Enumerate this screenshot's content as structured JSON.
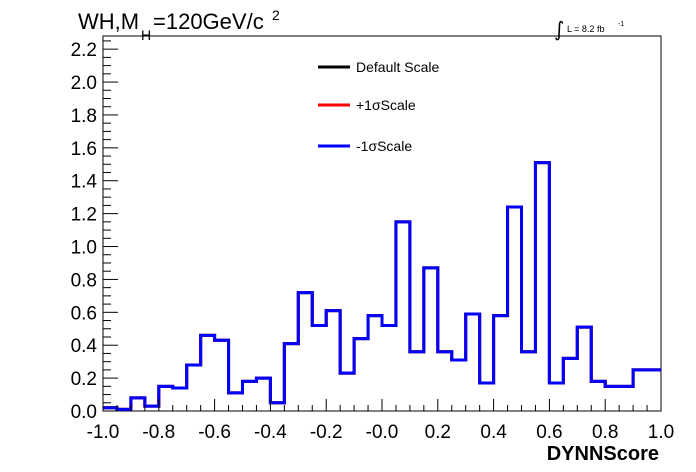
{
  "chart_data": {
    "type": "line",
    "title": {
      "main": "WH,M",
      "subscript": "H",
      "rest": "=120GeV/c",
      "superscript": "2"
    },
    "luminosity": {
      "symbol": "∫",
      "text": "L = 8.2 fb",
      "superscript": "-1"
    },
    "xlabel": "DYNNScore",
    "ylabel": "",
    "xlim": [
      -1.0,
      1.0
    ],
    "ylim": [
      0.0,
      2.28
    ],
    "x_ticks": [
      "-1.0",
      "-0.8",
      "-0.6",
      "-0.4",
      "-0.2",
      "-0.0",
      "0.2",
      "0.4",
      "0.6",
      "0.8",
      "1.0"
    ],
    "y_ticks": [
      "0.0",
      "0.2",
      "0.4",
      "0.6",
      "0.8",
      "1.0",
      "1.2",
      "1.4",
      "1.6",
      "1.8",
      "2.0",
      "2.2"
    ],
    "bin_edges": [
      -1.0,
      -0.95,
      -0.9,
      -0.85,
      -0.8,
      -0.75,
      -0.7,
      -0.65,
      -0.6,
      -0.55,
      -0.5,
      -0.45,
      -0.4,
      -0.35,
      -0.3,
      -0.25,
      -0.2,
      -0.15,
      -0.1,
      -0.05,
      0.0,
      0.05,
      0.1,
      0.15,
      0.2,
      0.25,
      0.3,
      0.35,
      0.4,
      0.45,
      0.5,
      0.55,
      0.6,
      0.65,
      0.7,
      0.75,
      0.8,
      0.85,
      0.9,
      0.95,
      1.0
    ],
    "series": [
      {
        "name": "Default Scale",
        "color": "#000000",
        "values": [
          0.02,
          0.01,
          0.08,
          0.03,
          0.15,
          0.14,
          0.28,
          0.46,
          0.43,
          0.11,
          0.18,
          0.2,
          0.05,
          0.41,
          0.72,
          0.52,
          0.61,
          0.23,
          0.44,
          0.58,
          0.52,
          1.15,
          0.36,
          0.87,
          0.36,
          0.31,
          0.59,
          0.17,
          0.58,
          1.24,
          0.36,
          1.51,
          0.17,
          0.32,
          0.51,
          0.18,
          0.15,
          0.15,
          0.25,
          0.25
        ]
      },
      {
        "name": "+1σScale",
        "color": "#ff0000",
        "values": [
          0.02,
          0.01,
          0.08,
          0.03,
          0.15,
          0.14,
          0.28,
          0.46,
          0.43,
          0.11,
          0.18,
          0.2,
          0.05,
          0.41,
          0.72,
          0.52,
          0.61,
          0.23,
          0.44,
          0.58,
          0.52,
          1.15,
          0.36,
          0.87,
          0.36,
          0.31,
          0.59,
          0.17,
          0.58,
          1.24,
          0.36,
          1.51,
          0.17,
          0.32,
          0.51,
          0.18,
          0.15,
          0.15,
          0.25,
          0.25
        ]
      },
      {
        "name": "-1σScale",
        "color": "#0000ff",
        "values": [
          0.02,
          0.01,
          0.08,
          0.03,
          0.15,
          0.14,
          0.28,
          0.46,
          0.43,
          0.11,
          0.18,
          0.2,
          0.05,
          0.41,
          0.72,
          0.52,
          0.61,
          0.23,
          0.44,
          0.58,
          0.52,
          1.15,
          0.36,
          0.87,
          0.36,
          0.31,
          0.59,
          0.17,
          0.58,
          1.24,
          0.36,
          1.51,
          0.17,
          0.32,
          0.51,
          0.18,
          0.15,
          0.15,
          0.25,
          0.25
        ]
      }
    ],
    "legend_position": "top-center",
    "grid": false
  }
}
